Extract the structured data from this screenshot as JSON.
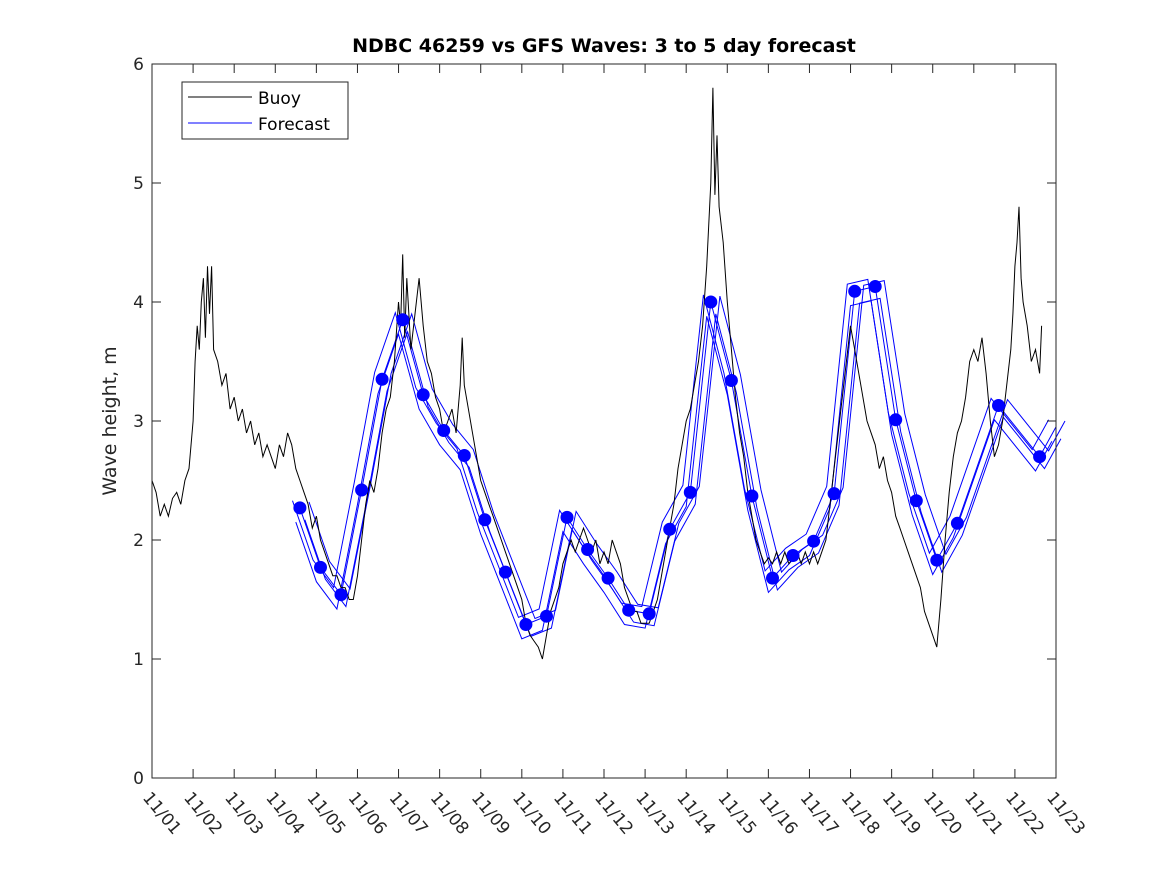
{
  "chart_data": {
    "type": "line",
    "title": "NDBC 46259 vs GFS Waves: 3 to 5 day forecast",
    "xlabel": "",
    "ylabel": "Wave height, m",
    "xlim": [
      0,
      22
    ],
    "ylim": [
      0,
      6
    ],
    "x_unit": "days since 11/01",
    "x_tick_values": [
      0,
      1,
      2,
      3,
      4,
      5,
      6,
      7,
      8,
      9,
      10,
      11,
      12,
      13,
      14,
      15,
      16,
      17,
      18,
      19,
      20,
      21,
      22
    ],
    "x_tick_labels": [
      "11/01",
      "11/02",
      "11/03",
      "11/04",
      "11/05",
      "11/06",
      "11/07",
      "11/08",
      "11/09",
      "11/10",
      "11/11",
      "11/12",
      "11/13",
      "11/14",
      "11/15",
      "11/16",
      "11/17",
      "11/18",
      "11/19",
      "11/20",
      "11/21",
      "11/22",
      "11/23"
    ],
    "y_tick_values": [
      0,
      1,
      2,
      3,
      4,
      5,
      6
    ],
    "y_tick_labels": [
      "0",
      "1",
      "2",
      "3",
      "4",
      "5",
      "6"
    ],
    "legend": {
      "position": "top-left",
      "entries": [
        {
          "label": "Buoy",
          "color": "#000000"
        },
        {
          "label": "Forecast",
          "color": "#0000ff"
        }
      ]
    },
    "series": [
      {
        "name": "Buoy",
        "color": "#000000",
        "points": [
          [
            0.0,
            2.5
          ],
          [
            0.1,
            2.4
          ],
          [
            0.2,
            2.2
          ],
          [
            0.3,
            2.3
          ],
          [
            0.4,
            2.2
          ],
          [
            0.5,
            2.35
          ],
          [
            0.6,
            2.4
          ],
          [
            0.7,
            2.3
          ],
          [
            0.8,
            2.5
          ],
          [
            0.9,
            2.6
          ],
          [
            1.0,
            3.0
          ],
          [
            1.05,
            3.5
          ],
          [
            1.1,
            3.8
          ],
          [
            1.15,
            3.6
          ],
          [
            1.2,
            4.0
          ],
          [
            1.25,
            4.2
          ],
          [
            1.3,
            3.7
          ],
          [
            1.35,
            4.3
          ],
          [
            1.4,
            3.9
          ],
          [
            1.45,
            4.3
          ],
          [
            1.5,
            3.6
          ],
          [
            1.6,
            3.5
          ],
          [
            1.7,
            3.3
          ],
          [
            1.8,
            3.4
          ],
          [
            1.9,
            3.1
          ],
          [
            2.0,
            3.2
          ],
          [
            2.1,
            3.0
          ],
          [
            2.2,
            3.1
          ],
          [
            2.3,
            2.9
          ],
          [
            2.4,
            3.0
          ],
          [
            2.5,
            2.8
          ],
          [
            2.6,
            2.9
          ],
          [
            2.7,
            2.7
          ],
          [
            2.8,
            2.8
          ],
          [
            2.9,
            2.7
          ],
          [
            3.0,
            2.6
          ],
          [
            3.1,
            2.8
          ],
          [
            3.2,
            2.7
          ],
          [
            3.3,
            2.9
          ],
          [
            3.4,
            2.8
          ],
          [
            3.5,
            2.6
          ],
          [
            3.6,
            2.5
          ],
          [
            3.7,
            2.4
          ],
          [
            3.8,
            2.3
          ],
          [
            3.9,
            2.1
          ],
          [
            4.0,
            2.2
          ],
          [
            4.1,
            2.0
          ],
          [
            4.2,
            1.9
          ],
          [
            4.3,
            1.8
          ],
          [
            4.4,
            1.7
          ],
          [
            4.5,
            1.7
          ],
          [
            4.6,
            1.6
          ],
          [
            4.7,
            1.6
          ],
          [
            4.8,
            1.5
          ],
          [
            4.9,
            1.5
          ],
          [
            5.0,
            1.7
          ],
          [
            5.1,
            2.0
          ],
          [
            5.2,
            2.3
          ],
          [
            5.3,
            2.5
          ],
          [
            5.4,
            2.4
          ],
          [
            5.5,
            2.6
          ],
          [
            5.6,
            2.9
          ],
          [
            5.7,
            3.1
          ],
          [
            5.8,
            3.2
          ],
          [
            5.9,
            3.5
          ],
          [
            6.0,
            4.0
          ],
          [
            6.05,
            3.8
          ],
          [
            6.1,
            4.4
          ],
          [
            6.15,
            3.7
          ],
          [
            6.2,
            4.2
          ],
          [
            6.3,
            3.6
          ],
          [
            6.4,
            3.9
          ],
          [
            6.5,
            4.2
          ],
          [
            6.6,
            3.8
          ],
          [
            6.7,
            3.5
          ],
          [
            6.8,
            3.4
          ],
          [
            6.9,
            3.2
          ],
          [
            7.0,
            3.1
          ],
          [
            7.1,
            2.9
          ],
          [
            7.2,
            3.0
          ],
          [
            7.3,
            3.1
          ],
          [
            7.4,
            2.9
          ],
          [
            7.5,
            3.3
          ],
          [
            7.55,
            3.7
          ],
          [
            7.6,
            3.3
          ],
          [
            7.7,
            3.1
          ],
          [
            7.8,
            2.9
          ],
          [
            7.9,
            2.7
          ],
          [
            8.0,
            2.5
          ],
          [
            8.1,
            2.4
          ],
          [
            8.2,
            2.3
          ],
          [
            8.3,
            2.2
          ],
          [
            8.4,
            2.1
          ],
          [
            8.5,
            2.0
          ],
          [
            8.6,
            1.9
          ],
          [
            8.7,
            1.8
          ],
          [
            8.8,
            1.7
          ],
          [
            8.9,
            1.6
          ],
          [
            9.0,
            1.5
          ],
          [
            9.1,
            1.3
          ],
          [
            9.2,
            1.2
          ],
          [
            9.3,
            1.15
          ],
          [
            9.4,
            1.1
          ],
          [
            9.5,
            1.0
          ],
          [
            9.6,
            1.2
          ],
          [
            9.7,
            1.4
          ],
          [
            9.8,
            1.5
          ],
          [
            9.9,
            1.6
          ],
          [
            10.0,
            1.8
          ],
          [
            10.1,
            1.9
          ],
          [
            10.2,
            2.0
          ],
          [
            10.3,
            1.9
          ],
          [
            10.4,
            2.0
          ],
          [
            10.5,
            2.1
          ],
          [
            10.6,
            2.0
          ],
          [
            10.7,
            1.9
          ],
          [
            10.8,
            2.0
          ],
          [
            10.9,
            1.8
          ],
          [
            11.0,
            1.9
          ],
          [
            11.1,
            1.8
          ],
          [
            11.2,
            2.0
          ],
          [
            11.3,
            1.9
          ],
          [
            11.4,
            1.8
          ],
          [
            11.5,
            1.6
          ],
          [
            11.6,
            1.5
          ],
          [
            11.7,
            1.4
          ],
          [
            11.8,
            1.4
          ],
          [
            11.9,
            1.3
          ],
          [
            12.0,
            1.3
          ],
          [
            12.1,
            1.3
          ],
          [
            12.2,
            1.4
          ],
          [
            12.3,
            1.5
          ],
          [
            12.4,
            1.7
          ],
          [
            12.5,
            1.9
          ],
          [
            12.6,
            2.1
          ],
          [
            12.7,
            2.3
          ],
          [
            12.8,
            2.6
          ],
          [
            12.9,
            2.8
          ],
          [
            13.0,
            3.0
          ],
          [
            13.1,
            3.1
          ],
          [
            13.2,
            3.3
          ],
          [
            13.3,
            3.5
          ],
          [
            13.4,
            3.8
          ],
          [
            13.5,
            4.3
          ],
          [
            13.6,
            5.0
          ],
          [
            13.65,
            5.8
          ],
          [
            13.7,
            4.9
          ],
          [
            13.75,
            5.4
          ],
          [
            13.8,
            4.8
          ],
          [
            13.9,
            4.5
          ],
          [
            14.0,
            4.0
          ],
          [
            14.1,
            3.6
          ],
          [
            14.2,
            3.2
          ],
          [
            14.3,
            2.9
          ],
          [
            14.4,
            2.7
          ],
          [
            14.5,
            2.4
          ],
          [
            14.6,
            2.2
          ],
          [
            14.7,
            2.0
          ],
          [
            14.8,
            1.9
          ],
          [
            14.9,
            1.8
          ],
          [
            15.0,
            1.85
          ],
          [
            15.1,
            1.8
          ],
          [
            15.2,
            1.9
          ],
          [
            15.3,
            1.8
          ],
          [
            15.4,
            1.9
          ],
          [
            15.5,
            1.8
          ],
          [
            15.6,
            1.85
          ],
          [
            15.7,
            1.9
          ],
          [
            15.8,
            1.8
          ],
          [
            15.9,
            1.9
          ],
          [
            16.0,
            1.8
          ],
          [
            16.1,
            1.9
          ],
          [
            16.2,
            1.8
          ],
          [
            16.3,
            1.9
          ],
          [
            16.4,
            2.0
          ],
          [
            16.5,
            2.3
          ],
          [
            16.6,
            2.6
          ],
          [
            16.7,
            2.9
          ],
          [
            16.8,
            3.2
          ],
          [
            16.9,
            3.5
          ],
          [
            17.0,
            3.8
          ],
          [
            17.1,
            3.6
          ],
          [
            17.2,
            3.4
          ],
          [
            17.3,
            3.2
          ],
          [
            17.4,
            3.0
          ],
          [
            17.5,
            2.9
          ],
          [
            17.6,
            2.8
          ],
          [
            17.7,
            2.6
          ],
          [
            17.8,
            2.7
          ],
          [
            17.9,
            2.5
          ],
          [
            18.0,
            2.4
          ],
          [
            18.1,
            2.2
          ],
          [
            18.2,
            2.1
          ],
          [
            18.3,
            2.0
          ],
          [
            18.4,
            1.9
          ],
          [
            18.5,
            1.8
          ],
          [
            18.6,
            1.7
          ],
          [
            18.7,
            1.6
          ],
          [
            18.8,
            1.4
          ],
          [
            18.9,
            1.3
          ],
          [
            19.0,
            1.2
          ],
          [
            19.1,
            1.1
          ],
          [
            19.2,
            1.5
          ],
          [
            19.3,
            2.0
          ],
          [
            19.4,
            2.4
          ],
          [
            19.5,
            2.7
          ],
          [
            19.6,
            2.9
          ],
          [
            19.7,
            3.0
          ],
          [
            19.8,
            3.2
          ],
          [
            19.9,
            3.5
          ],
          [
            20.0,
            3.6
          ],
          [
            20.1,
            3.5
          ],
          [
            20.2,
            3.7
          ],
          [
            20.3,
            3.4
          ],
          [
            20.4,
            3.0
          ],
          [
            20.5,
            2.7
          ],
          [
            20.6,
            2.8
          ],
          [
            20.7,
            3.0
          ],
          [
            20.8,
            3.3
          ],
          [
            20.9,
            3.6
          ],
          [
            20.95,
            3.9
          ],
          [
            21.0,
            4.3
          ],
          [
            21.05,
            4.5
          ],
          [
            21.1,
            4.8
          ],
          [
            21.15,
            4.2
          ],
          [
            21.2,
            4.0
          ],
          [
            21.3,
            3.8
          ],
          [
            21.4,
            3.5
          ],
          [
            21.5,
            3.6
          ],
          [
            21.6,
            3.4
          ],
          [
            21.65,
            3.8
          ]
        ]
      },
      {
        "name": "Forecast",
        "color": "#0000ff",
        "points": [
          [
            3.6,
            2.27
          ],
          [
            4.1,
            1.77
          ],
          [
            4.6,
            1.54
          ],
          [
            5.1,
            2.42
          ],
          [
            5.6,
            3.35
          ],
          [
            6.1,
            3.85
          ],
          [
            6.6,
            3.22
          ],
          [
            7.1,
            2.92
          ],
          [
            7.6,
            2.71
          ],
          [
            8.1,
            2.17
          ],
          [
            8.6,
            1.73
          ],
          [
            9.1,
            1.29
          ],
          [
            9.6,
            1.36
          ],
          [
            10.1,
            2.19
          ],
          [
            10.6,
            1.92
          ],
          [
            11.1,
            1.68
          ],
          [
            11.6,
            1.41
          ],
          [
            12.1,
            1.38
          ],
          [
            12.6,
            2.09
          ],
          [
            13.1,
            2.4
          ],
          [
            13.6,
            4.0
          ],
          [
            14.1,
            3.34
          ],
          [
            14.6,
            2.37
          ],
          [
            15.1,
            1.68
          ],
          [
            15.6,
            1.87
          ],
          [
            16.1,
            1.99
          ],
          [
            16.6,
            2.39
          ],
          [
            17.1,
            4.09
          ],
          [
            17.6,
            4.13
          ],
          [
            18.1,
            3.01
          ],
          [
            18.6,
            2.33
          ],
          [
            19.1,
            1.83
          ],
          [
            19.6,
            2.14
          ],
          [
            20.6,
            3.13
          ],
          [
            21.6,
            2.7
          ],
          [
            22.0,
            2.95
          ]
        ]
      }
    ]
  }
}
